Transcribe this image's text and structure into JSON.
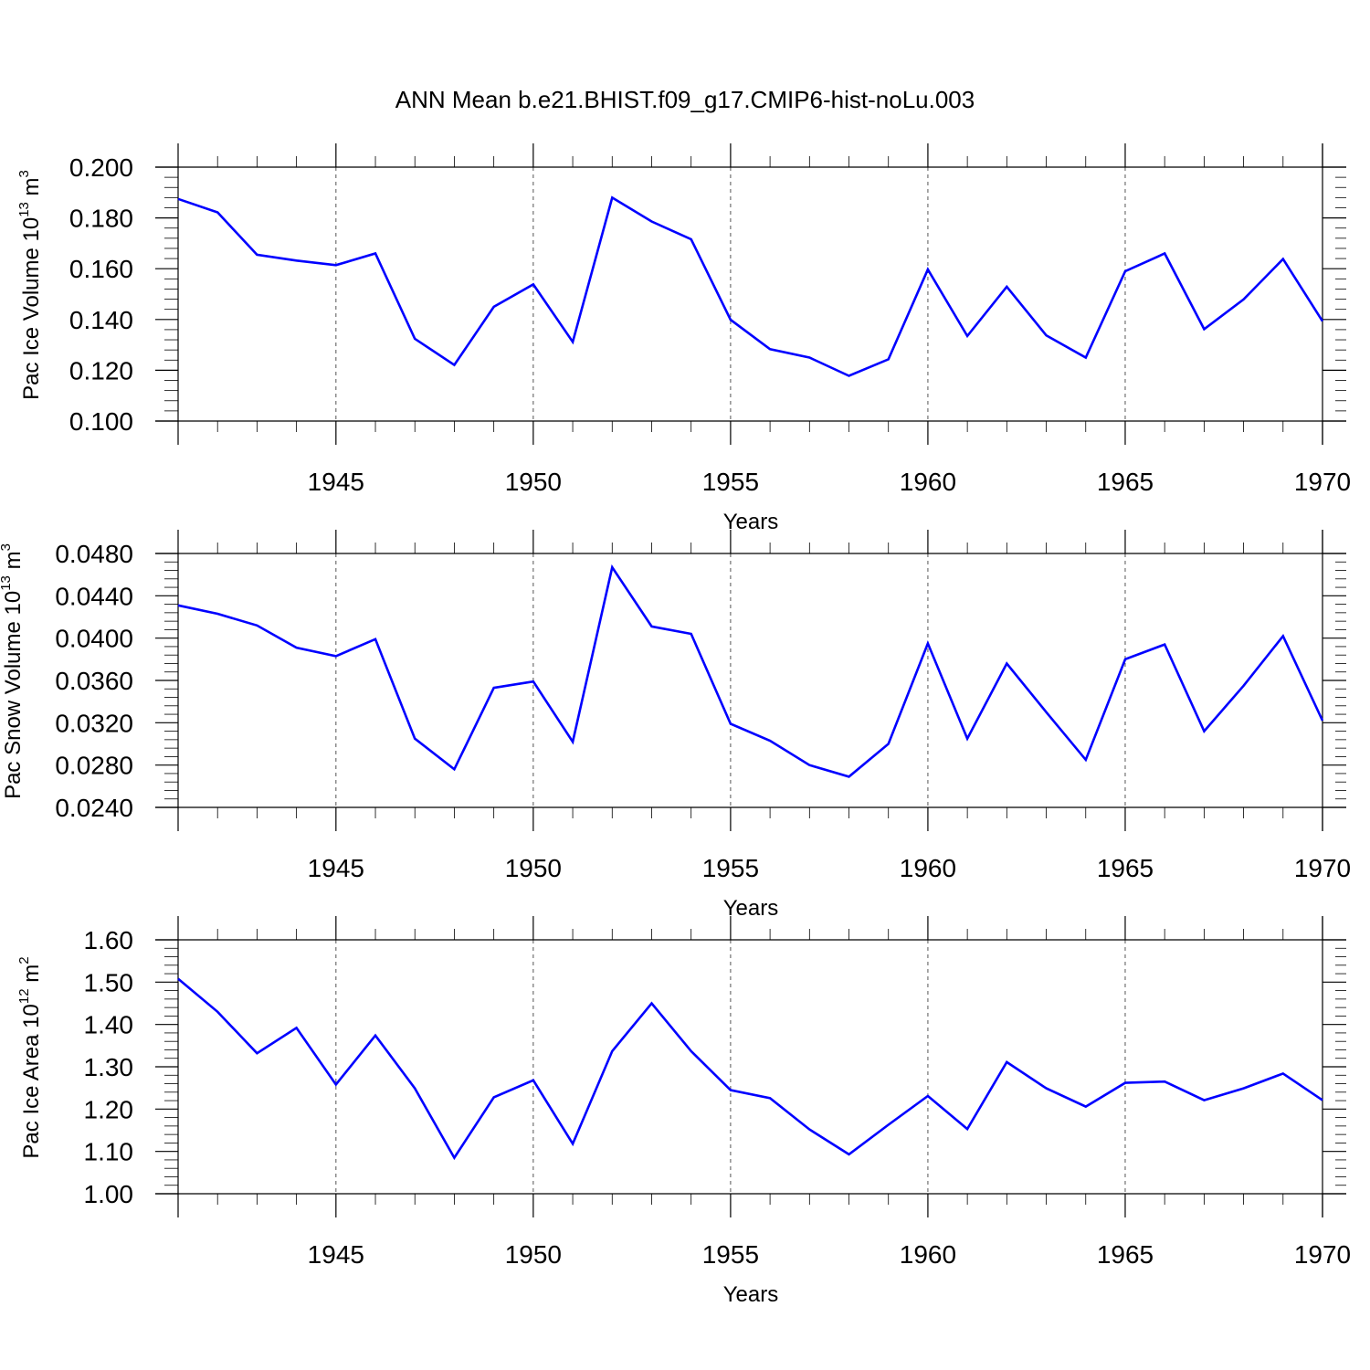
{
  "title": "ANN Mean b.e21.BHIST.f09_g17.CMIP6-hist-noLu.003",
  "chart_data": [
    {
      "type": "line",
      "ylabel": "Pac Ice Volume 10",
      "ylabel_sup": "13",
      "ylabel_unit": "m",
      "ylabel_unit_sup": "3",
      "xlabel": "Years",
      "ylim": [
        0.1,
        0.2
      ],
      "xlim": [
        1941,
        1970
      ],
      "yticks": [
        "0.100",
        "0.120",
        "0.140",
        "0.160",
        "0.180",
        "0.200"
      ],
      "xticks": [
        "1945",
        "1950",
        "1955",
        "1960",
        "1965",
        "1970"
      ],
      "color": "#0000ff",
      "x": [
        1941,
        1942,
        1943,
        1944,
        1945,
        1946,
        1947,
        1948,
        1949,
        1950,
        1951,
        1952,
        1953,
        1954,
        1955,
        1956,
        1957,
        1958,
        1959,
        1960,
        1961,
        1962,
        1963,
        1964,
        1965,
        1966,
        1967,
        1968,
        1969,
        1970
      ],
      "values": [
        0.1875,
        0.1822,
        0.1655,
        0.1632,
        0.1614,
        0.166,
        0.1324,
        0.1221,
        0.145,
        0.1538,
        0.1312,
        0.188,
        0.1786,
        0.1716,
        0.1399,
        0.1283,
        0.125,
        0.1178,
        0.1243,
        0.1597,
        0.1335,
        0.1529,
        0.1337,
        0.125,
        0.159,
        0.166,
        0.1362,
        0.1479,
        0.1638,
        0.1393
      ]
    },
    {
      "type": "line",
      "ylabel": "Pac Snow Volume 10",
      "ylabel_sup": "13",
      "ylabel_unit": "m",
      "ylabel_unit_sup": "3",
      "xlabel": "Years",
      "ylim": [
        0.024,
        0.048
      ],
      "xlim": [
        1941,
        1970
      ],
      "yticks": [
        "0.0240",
        "0.0280",
        "0.0320",
        "0.0360",
        "0.0400",
        "0.0440",
        "0.0480"
      ],
      "xticks": [
        "1945",
        "1950",
        "1955",
        "1960",
        "1965",
        "1970"
      ],
      "color": "#0000ff",
      "x": [
        1941,
        1942,
        1943,
        1944,
        1945,
        1946,
        1947,
        1948,
        1949,
        1950,
        1951,
        1952,
        1953,
        1954,
        1955,
        1956,
        1957,
        1958,
        1959,
        1960,
        1961,
        1962,
        1963,
        1964,
        1965,
        1966,
        1967,
        1968,
        1969,
        1970
      ],
      "values": [
        0.0431,
        0.0423,
        0.0412,
        0.0391,
        0.0383,
        0.0399,
        0.0305,
        0.0276,
        0.0353,
        0.0359,
        0.0302,
        0.0467,
        0.0411,
        0.0404,
        0.0319,
        0.0303,
        0.028,
        0.0269,
        0.03,
        0.0395,
        0.0305,
        0.0376,
        0.033,
        0.0285,
        0.038,
        0.0394,
        0.0312,
        0.0355,
        0.0402,
        0.0322
      ]
    },
    {
      "type": "line",
      "ylabel": "Pac Ice Area 10",
      "ylabel_sup": "12",
      "ylabel_unit": "m",
      "ylabel_unit_sup": "2",
      "xlabel": "Years",
      "ylim": [
        1.0,
        1.6
      ],
      "xlim": [
        1941,
        1970
      ],
      "yticks": [
        "1.00",
        "1.10",
        "1.20",
        "1.30",
        "1.40",
        "1.50",
        "1.60"
      ],
      "xticks": [
        "1945",
        "1950",
        "1955",
        "1960",
        "1965",
        "1970"
      ],
      "color": "#0000ff",
      "x": [
        1941,
        1942,
        1943,
        1944,
        1945,
        1946,
        1947,
        1948,
        1949,
        1950,
        1951,
        1952,
        1953,
        1954,
        1955,
        1956,
        1957,
        1958,
        1959,
        1960,
        1961,
        1962,
        1963,
        1964,
        1965,
        1966,
        1967,
        1968,
        1969,
        1970
      ],
      "values": [
        1.508,
        1.43,
        1.332,
        1.392,
        1.258,
        1.374,
        1.249,
        1.085,
        1.228,
        1.268,
        1.118,
        1.337,
        1.45,
        1.337,
        1.245,
        1.226,
        1.152,
        1.093,
        1.163,
        1.231,
        1.153,
        1.311,
        1.249,
        1.206,
        1.262,
        1.265,
        1.221,
        1.249,
        1.284,
        1.221
      ]
    }
  ]
}
